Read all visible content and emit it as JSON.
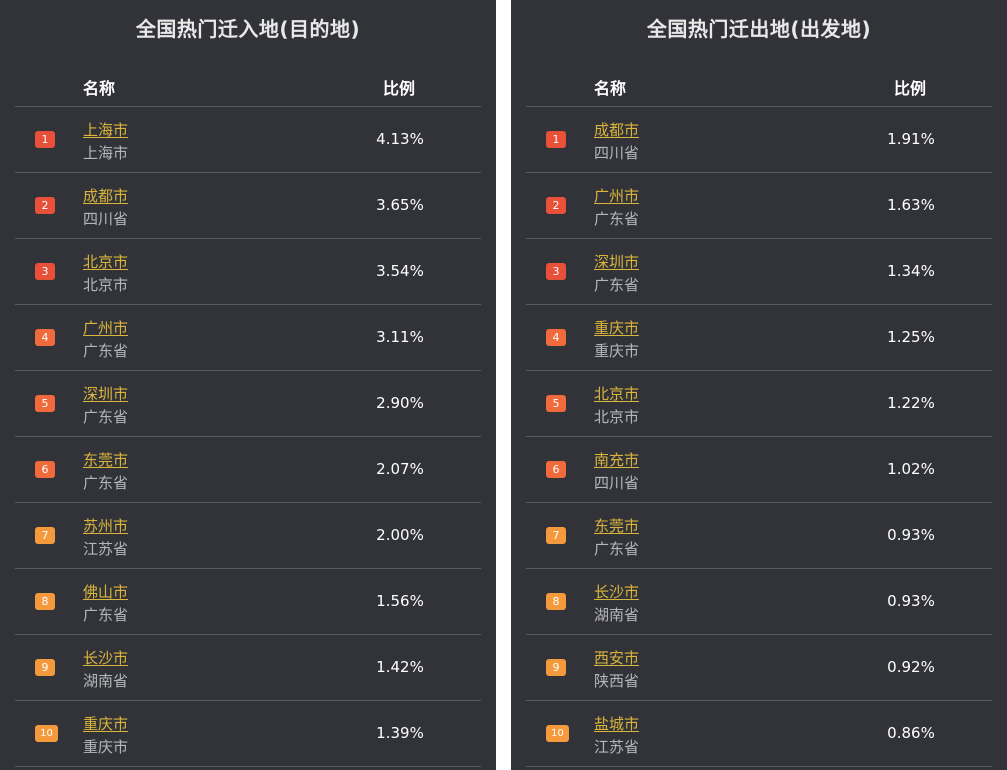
{
  "colors": {
    "panel_bg": "#323338",
    "city_link": "#d9b53c",
    "province_text": "#b6b7ba",
    "badge_top": "#e8503a",
    "badge_mid": "#f06a3c",
    "badge_low": "#f59a3c"
  },
  "inbound": {
    "title": "全国热门迁入地(目的地)",
    "col_name": "名称",
    "col_ratio": "比例",
    "rows": [
      {
        "rank": "1",
        "city": "上海市",
        "province": "上海市",
        "ratio": "4.13%"
      },
      {
        "rank": "2",
        "city": "成都市",
        "province": "四川省",
        "ratio": "3.65%"
      },
      {
        "rank": "3",
        "city": "北京市",
        "province": "北京市",
        "ratio": "3.54%"
      },
      {
        "rank": "4",
        "city": "广州市",
        "province": "广东省",
        "ratio": "3.11%"
      },
      {
        "rank": "5",
        "city": "深圳市",
        "province": "广东省",
        "ratio": "2.90%"
      },
      {
        "rank": "6",
        "city": "东莞市",
        "province": "广东省",
        "ratio": "2.07%"
      },
      {
        "rank": "7",
        "city": "苏州市",
        "province": "江苏省",
        "ratio": "2.00%"
      },
      {
        "rank": "8",
        "city": "佛山市",
        "province": "广东省",
        "ratio": "1.56%"
      },
      {
        "rank": "9",
        "city": "长沙市",
        "province": "湖南省",
        "ratio": "1.42%"
      },
      {
        "rank": "10",
        "city": "重庆市",
        "province": "重庆市",
        "ratio": "1.39%"
      }
    ]
  },
  "outbound": {
    "title": "全国热门迁出地(出发地)",
    "col_name": "名称",
    "col_ratio": "比例",
    "rows": [
      {
        "rank": "1",
        "city": "成都市",
        "province": "四川省",
        "ratio": "1.91%"
      },
      {
        "rank": "2",
        "city": "广州市",
        "province": "广东省",
        "ratio": "1.63%"
      },
      {
        "rank": "3",
        "city": "深圳市",
        "province": "广东省",
        "ratio": "1.34%"
      },
      {
        "rank": "4",
        "city": "重庆市",
        "province": "重庆市",
        "ratio": "1.25%"
      },
      {
        "rank": "5",
        "city": "北京市",
        "province": "北京市",
        "ratio": "1.22%"
      },
      {
        "rank": "6",
        "city": "南充市",
        "province": "四川省",
        "ratio": "1.02%"
      },
      {
        "rank": "7",
        "city": "东莞市",
        "province": "广东省",
        "ratio": "0.93%"
      },
      {
        "rank": "8",
        "city": "长沙市",
        "province": "湖南省",
        "ratio": "0.93%"
      },
      {
        "rank": "9",
        "city": "西安市",
        "province": "陕西省",
        "ratio": "0.92%"
      },
      {
        "rank": "10",
        "city": "盐城市",
        "province": "江苏省",
        "ratio": "0.86%"
      }
    ]
  }
}
